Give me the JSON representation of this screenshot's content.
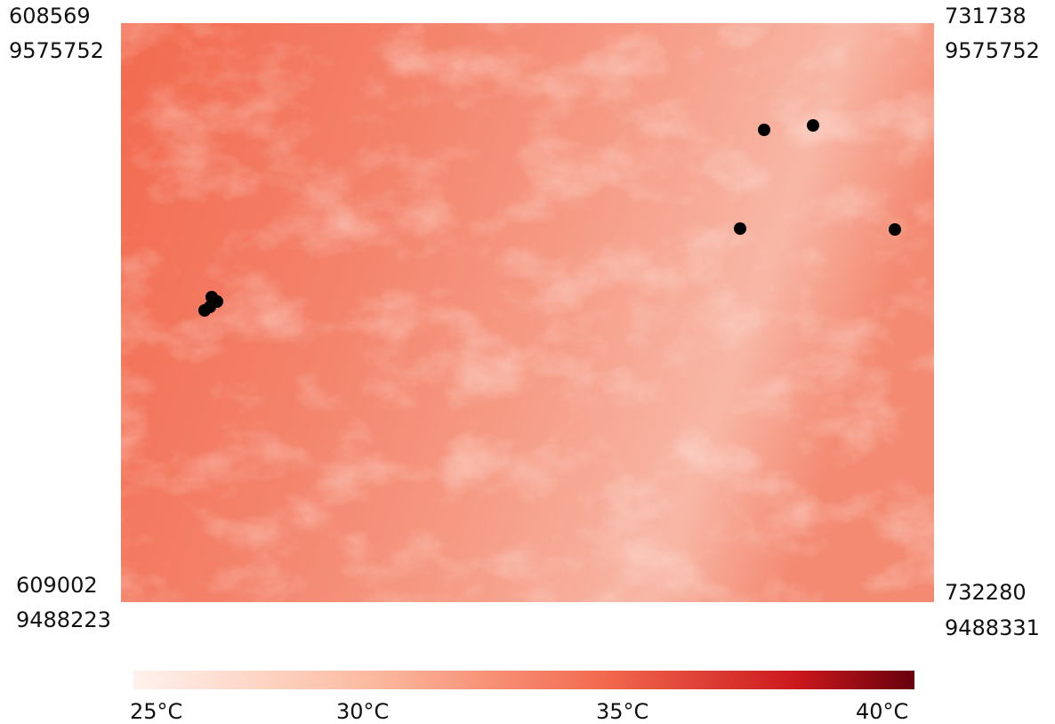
{
  "corners": {
    "top_left": {
      "x": "608569",
      "y": "9575752"
    },
    "top_right": {
      "x": "731738",
      "y": "9575752"
    },
    "bottom_left": {
      "x": "609002",
      "y": "9488223"
    },
    "bottom_right": {
      "x": "732280",
      "y": "9488331"
    }
  },
  "legend": {
    "ticks": [
      "25°C",
      "30°C",
      "35°C",
      "40°C"
    ]
  }
}
